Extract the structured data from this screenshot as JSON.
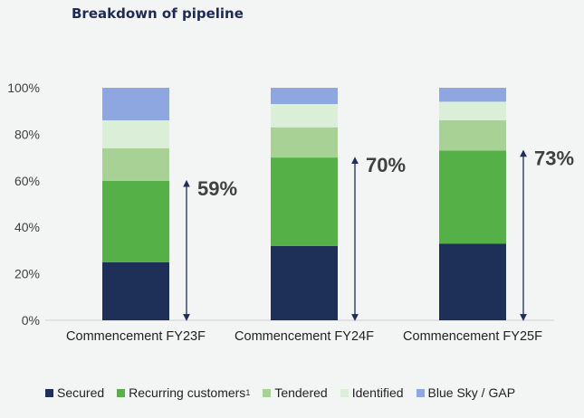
{
  "chart_data": {
    "type": "bar",
    "stacked": true,
    "title": "Breakdown of pipeline",
    "categories": [
      "Commencement FY23F",
      "Commencement FY24F",
      "Commencement FY25F"
    ],
    "series": [
      {
        "name": "Secured",
        "color": "#1e3058",
        "values": [
          25,
          32,
          33
        ]
      },
      {
        "name": "Recurring customers",
        "name_superscript": "1",
        "color": "#55b048",
        "values": [
          35,
          38,
          40
        ]
      },
      {
        "name": "Tendered",
        "color": "#a8d196",
        "values": [
          14,
          13,
          13
        ]
      },
      {
        "name": "Identified",
        "color": "#dbeed7",
        "values": [
          12,
          10,
          8
        ]
      },
      {
        "name": "Blue Sky / GAP",
        "color": "#8fa7e0",
        "values": [
          14,
          7,
          6
        ]
      }
    ],
    "annotations": [
      {
        "category": "Commencement FY23F",
        "label": "59%",
        "from": 0,
        "to": 60
      },
      {
        "category": "Commencement FY24F",
        "label": "70%",
        "from": 0,
        "to": 70
      },
      {
        "category": "Commencement FY25F",
        "label": "73%",
        "from": 0,
        "to": 73
      }
    ],
    "ylim": [
      0,
      100
    ],
    "yticks": [
      "0%",
      "20%",
      "40%",
      "60%",
      "80%",
      "100%"
    ],
    "xlabel": "",
    "ylabel": "",
    "grid": false,
    "legend_position": "bottom"
  }
}
